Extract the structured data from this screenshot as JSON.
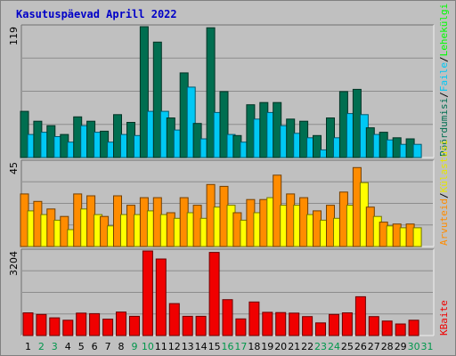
{
  "chart_data": {
    "type": "bar",
    "title": "Kasutuspäevad Aprill 2022",
    "categories": [
      "1",
      "2",
      "3",
      "4",
      "5",
      "6",
      "7",
      "8",
      "9",
      "10",
      "11",
      "12",
      "13",
      "14",
      "15",
      "16",
      "17",
      "18",
      "19",
      "20",
      "21",
      "22",
      "23",
      "24",
      "25",
      "26",
      "27",
      "28",
      "29",
      "30",
      "31"
    ],
    "weekend_days": [
      "2",
      "3",
      "9",
      "10",
      "16",
      "17",
      "23",
      "24",
      "30",
      "31"
    ],
    "legend": {
      "top": [
        "Pöördumisi",
        "/",
        "Faile",
        "/",
        "Lehekülgi"
      ],
      "middle": [
        "Arvuteid",
        "/",
        "Külastusi"
      ],
      "bottom": [
        "KBaite"
      ]
    },
    "panels": [
      {
        "name": "top",
        "ymax_label": "119",
        "ylim": [
          0,
          119
        ],
        "series": [
          {
            "name": "Pöördumisi",
            "color": "#006e50",
            "values": [
              42,
              33,
              29,
              21,
              37,
              33,
              24,
              39,
              32,
              119,
              105,
              36,
              77,
              31,
              118,
              60,
              20,
              48,
              50,
              50,
              35,
              33,
              20,
              36,
              60,
              62,
              27,
              23,
              18,
              17,
              null
            ]
          },
          {
            "name": "Faile",
            "color": "#00c8f5",
            "values": [
              21,
              23,
              19,
              14,
              29,
              23,
              14,
              21,
              20,
              42,
              42,
              25,
              64,
              17,
              41,
              21,
              14,
              35,
              41,
              29,
              22,
              18,
              7,
              18,
              40,
              39,
              21,
              16,
              12,
              12,
              null
            ]
          },
          {
            "name": "Lehekülgi",
            "color": "#00ff00",
            "values": []
          }
        ]
      },
      {
        "name": "middle",
        "ymax_label": "45",
        "ylim": [
          0,
          45
        ],
        "series": [
          {
            "name": "Arvuteid",
            "color": "#ff8c00",
            "values": [
              28,
              24,
              20,
              16,
              28,
              27,
              16,
              27,
              22,
              26,
              26,
              18,
              26,
              22,
              33,
              32,
              18,
              25,
              25,
              38,
              28,
              26,
              19,
              22,
              29,
              42,
              21,
              13,
              12,
              12,
              null
            ]
          },
          {
            "name": "Külastusi",
            "color": "#ffff00",
            "values": [
              19,
              17,
              14,
              9,
              20,
              17,
              11,
              17,
              17,
              19,
              17,
              15,
              18,
              15,
              21,
              22,
              14,
              18,
              26,
              22,
              22,
              17,
              14,
              15,
              22,
              34,
              16,
              11,
              10,
              10,
              null
            ]
          }
        ]
      },
      {
        "name": "bottom",
        "ymax_label": "3204",
        "ylim": [
          0,
          3204
        ],
        "series": [
          {
            "name": "KBaite",
            "color": "#f00000",
            "values": [
              860,
              800,
              670,
              580,
              850,
              830,
              620,
              890,
              730,
              3204,
              2900,
              1210,
              730,
              730,
              3150,
              1360,
              630,
              1270,
              880,
              870,
              850,
              720,
              480,
              800,
              860,
              1470,
              720,
              550,
              440,
              580,
              null
            ]
          }
        ]
      }
    ]
  }
}
